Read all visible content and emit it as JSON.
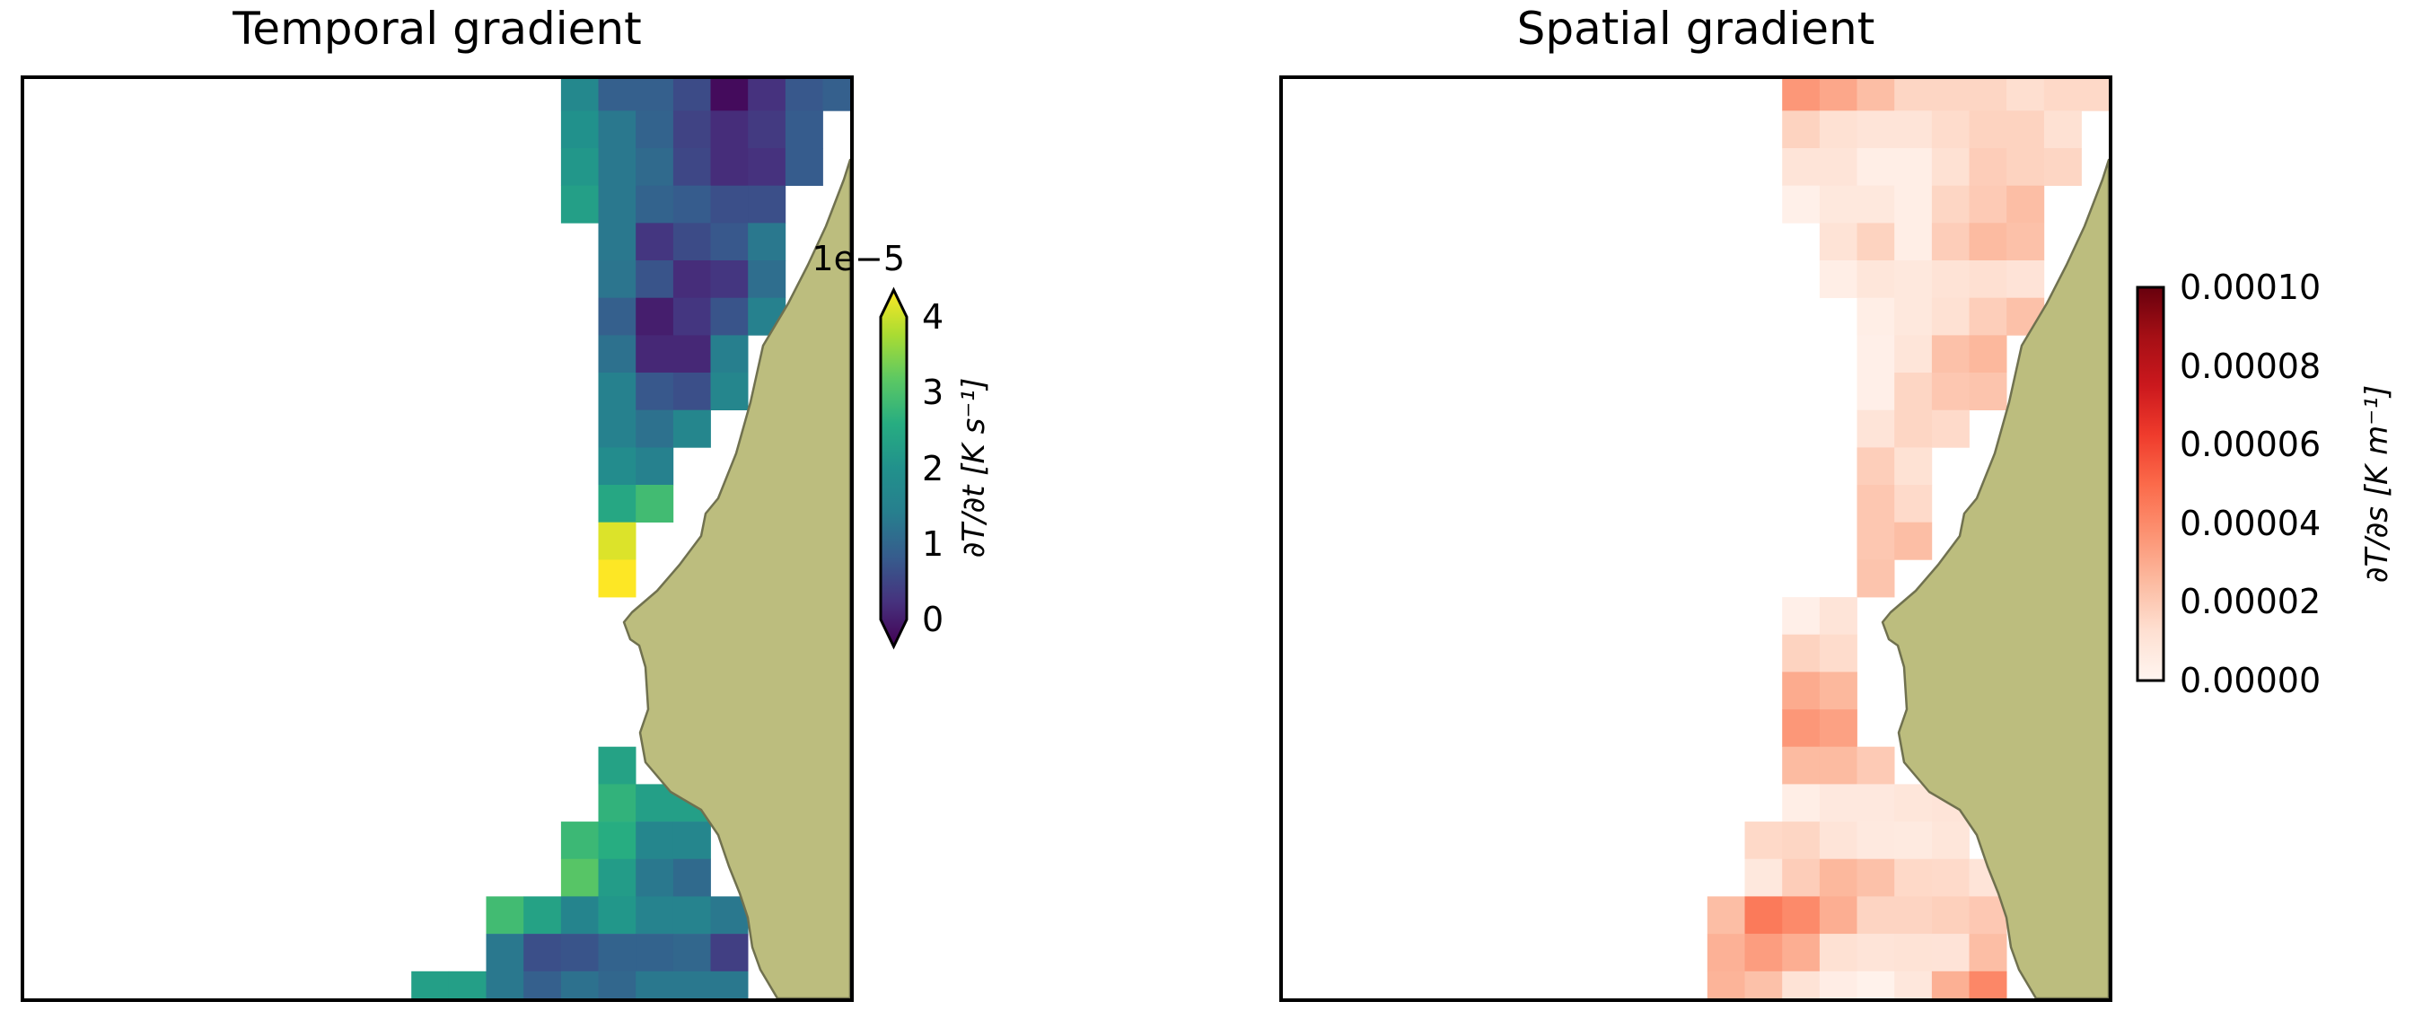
{
  "figure": {
    "background": "#ffffff",
    "border_color": "#000000",
    "land_fill": "#bcbd7e",
    "land_edge": "#70714f"
  },
  "chart_data": [
    {
      "type": "heatmap",
      "title": "Temporal gradient",
      "colorbar_label": "∂T/∂t [K s⁻¹]",
      "offset_text": "1e−5",
      "colorbar_ticks": [
        "4",
        "3",
        "2",
        "1",
        "0"
      ],
      "colormap": "viridis",
      "extend": "both",
      "vmin": 0,
      "vmax": 4e-05,
      "value_units": "1e-5 K/s",
      "axes_ticks": "none",
      "legend": "none",
      "grid_note": "cells are [row,col,value(x1e-5)] on a 41.67px square lattice over the map",
      "cells": [
        [
          1,
          15,
          1.75
        ],
        [
          1,
          16,
          1.05
        ],
        [
          1,
          17,
          1.05
        ],
        [
          1,
          18,
          0.8
        ],
        [
          1,
          19,
          0.1
        ],
        [
          1,
          20,
          0.5
        ],
        [
          1,
          21,
          0.95
        ],
        [
          1,
          22,
          1.05
        ],
        [
          2,
          15,
          2.0
        ],
        [
          2,
          16,
          1.4
        ],
        [
          2,
          17,
          1.1
        ],
        [
          2,
          18,
          0.7
        ],
        [
          2,
          19,
          0.45
        ],
        [
          2,
          20,
          0.6
        ],
        [
          2,
          21,
          1.0
        ],
        [
          3,
          15,
          2.1
        ],
        [
          3,
          16,
          1.4
        ],
        [
          3,
          17,
          1.2
        ],
        [
          3,
          18,
          0.75
        ],
        [
          3,
          19,
          0.45
        ],
        [
          3,
          20,
          0.5
        ],
        [
          3,
          21,
          1.0
        ],
        [
          4,
          15,
          2.25
        ],
        [
          4,
          16,
          1.4
        ],
        [
          4,
          17,
          1.1
        ],
        [
          4,
          18,
          1.0
        ],
        [
          4,
          19,
          0.85
        ],
        [
          4,
          20,
          0.85
        ],
        [
          5,
          16,
          1.4
        ],
        [
          5,
          17,
          0.55
        ],
        [
          5,
          18,
          0.8
        ],
        [
          5,
          19,
          0.95
        ],
        [
          5,
          20,
          1.4
        ],
        [
          6,
          16,
          1.35
        ],
        [
          6,
          17,
          0.9
        ],
        [
          6,
          18,
          0.45
        ],
        [
          6,
          19,
          0.55
        ],
        [
          6,
          20,
          1.25
        ],
        [
          7,
          16,
          1.05
        ],
        [
          7,
          17,
          0.3
        ],
        [
          7,
          18,
          0.55
        ],
        [
          7,
          19,
          0.9
        ],
        [
          7,
          20,
          1.55
        ],
        [
          8,
          16,
          1.3
        ],
        [
          8,
          17,
          0.4
        ],
        [
          8,
          18,
          0.4
        ],
        [
          8,
          19,
          1.5
        ],
        [
          9,
          16,
          1.55
        ],
        [
          9,
          17,
          0.95
        ],
        [
          9,
          18,
          0.85
        ],
        [
          9,
          19,
          1.7
        ],
        [
          10,
          16,
          1.55
        ],
        [
          10,
          17,
          1.3
        ],
        [
          10,
          18,
          1.7
        ],
        [
          11,
          16,
          1.85
        ],
        [
          11,
          17,
          1.55
        ],
        [
          12,
          16,
          2.4
        ],
        [
          12,
          17,
          2.75
        ],
        [
          13,
          16,
          3.8
        ],
        [
          14,
          16,
          4.0
        ],
        [
          19,
          16,
          2.3
        ],
        [
          20,
          16,
          2.6
        ],
        [
          20,
          17,
          2.25
        ],
        [
          20,
          18,
          2.25
        ],
        [
          21,
          15,
          2.7
        ],
        [
          21,
          16,
          2.5
        ],
        [
          21,
          17,
          1.7
        ],
        [
          21,
          18,
          1.7
        ],
        [
          22,
          15,
          2.95
        ],
        [
          22,
          16,
          2.2
        ],
        [
          22,
          17,
          1.4
        ],
        [
          22,
          18,
          1.2
        ],
        [
          23,
          13,
          2.75
        ],
        [
          23,
          14,
          2.3
        ],
        [
          23,
          15,
          1.65
        ],
        [
          23,
          16,
          2.1
        ],
        [
          23,
          17,
          1.6
        ],
        [
          23,
          18,
          1.6
        ],
        [
          23,
          19,
          1.4
        ],
        [
          24,
          13,
          1.4
        ],
        [
          24,
          14,
          0.85
        ],
        [
          24,
          15,
          0.9
        ],
        [
          24,
          16,
          1.1
        ],
        [
          24,
          17,
          1.1
        ],
        [
          24,
          18,
          1.15
        ],
        [
          24,
          19,
          0.65
        ],
        [
          25,
          11,
          2.25
        ],
        [
          25,
          12,
          2.25
        ],
        [
          25,
          13,
          1.4
        ],
        [
          25,
          14,
          1.05
        ],
        [
          25,
          15,
          1.3
        ],
        [
          25,
          16,
          1.15
        ],
        [
          25,
          17,
          1.4
        ],
        [
          25,
          18,
          1.4
        ],
        [
          25,
          19,
          1.4
        ]
      ]
    },
    {
      "type": "heatmap",
      "title": "Spatial gradient",
      "colorbar_label": "∂T/∂s [K m⁻¹]",
      "offset_text": "",
      "colorbar_ticks": [
        "0.00010",
        "0.00008",
        "0.00006",
        "0.00004",
        "0.00002",
        "0.00000"
      ],
      "colormap": "reds",
      "extend": "neither",
      "vmin": 0,
      "vmax": 0.0001,
      "value_units": "1e-5 K/m",
      "axes_ticks": "none",
      "legend": "none",
      "grid_note": "cells are [row,col,value(x1e-5)] on a 41.67px square lattice over the map",
      "cells": [
        [
          1,
          14,
          3.6
        ],
        [
          1,
          15,
          3.1
        ],
        [
          1,
          16,
          2.4
        ],
        [
          1,
          17,
          1.6
        ],
        [
          1,
          18,
          1.6
        ],
        [
          1,
          19,
          1.6
        ],
        [
          1,
          20,
          1.3
        ],
        [
          1,
          21,
          1.5
        ],
        [
          1,
          22,
          1.5
        ],
        [
          2,
          14,
          1.7
        ],
        [
          2,
          15,
          1.2
        ],
        [
          2,
          16,
          1.0
        ],
        [
          2,
          17,
          1.0
        ],
        [
          2,
          18,
          1.4
        ],
        [
          2,
          19,
          1.7
        ],
        [
          2,
          20,
          1.7
        ],
        [
          2,
          21,
          1.2
        ],
        [
          3,
          14,
          1.0
        ],
        [
          3,
          15,
          1.0
        ],
        [
          3,
          16,
          0.4
        ],
        [
          3,
          17,
          0.4
        ],
        [
          3,
          18,
          1.2
        ],
        [
          3,
          19,
          1.9
        ],
        [
          3,
          20,
          1.7
        ],
        [
          3,
          21,
          1.6
        ],
        [
          4,
          14,
          0.3
        ],
        [
          4,
          15,
          0.8
        ],
        [
          4,
          16,
          0.8
        ],
        [
          4,
          17,
          0.4
        ],
        [
          4,
          18,
          1.6
        ],
        [
          4,
          19,
          2.0
        ],
        [
          4,
          20,
          2.4
        ],
        [
          5,
          15,
          1.1
        ],
        [
          5,
          16,
          1.7
        ],
        [
          5,
          17,
          0.4
        ],
        [
          5,
          18,
          1.9
        ],
        [
          5,
          19,
          2.5
        ],
        [
          5,
          20,
          2.3
        ],
        [
          6,
          15,
          0.4
        ],
        [
          6,
          16,
          0.9
        ],
        [
          6,
          17,
          0.8
        ],
        [
          6,
          18,
          1.1
        ],
        [
          6,
          19,
          1.25
        ],
        [
          6,
          20,
          1.05
        ],
        [
          7,
          16,
          0.4
        ],
        [
          7,
          17,
          0.8
        ],
        [
          7,
          18,
          1.2
        ],
        [
          7,
          19,
          1.85
        ],
        [
          7,
          20,
          2.3
        ],
        [
          8,
          16,
          0.35
        ],
        [
          8,
          17,
          0.95
        ],
        [
          8,
          18,
          2.3
        ],
        [
          8,
          19,
          2.6
        ],
        [
          9,
          16,
          0.35
        ],
        [
          9,
          17,
          1.6
        ],
        [
          9,
          18,
          2.1
        ],
        [
          9,
          19,
          2.2
        ],
        [
          10,
          16,
          1.0
        ],
        [
          10,
          17,
          1.6
        ],
        [
          10,
          18,
          1.45
        ],
        [
          11,
          16,
          1.85
        ],
        [
          11,
          17,
          1.15
        ],
        [
          12,
          16,
          2.1
        ],
        [
          12,
          17,
          1.45
        ],
        [
          13,
          16,
          2.1
        ],
        [
          13,
          17,
          2.4
        ],
        [
          14,
          16,
          2.2
        ],
        [
          15,
          14,
          0.35
        ],
        [
          15,
          15,
          1.0
        ],
        [
          16,
          14,
          1.7
        ],
        [
          16,
          15,
          1.4
        ],
        [
          17,
          14,
          3.0
        ],
        [
          17,
          15,
          2.6
        ],
        [
          18,
          14,
          3.6
        ],
        [
          18,
          15,
          3.3
        ],
        [
          19,
          14,
          2.5
        ],
        [
          19,
          15,
          2.5
        ],
        [
          19,
          16,
          2.0
        ],
        [
          20,
          14,
          0.4
        ],
        [
          20,
          15,
          0.75
        ],
        [
          20,
          16,
          0.75
        ],
        [
          20,
          17,
          0.9
        ],
        [
          20,
          18,
          1.0
        ],
        [
          21,
          13,
          1.5
        ],
        [
          21,
          14,
          1.6
        ],
        [
          21,
          15,
          1.0
        ],
        [
          21,
          16,
          0.7
        ],
        [
          21,
          17,
          0.65
        ],
        [
          21,
          18,
          0.9
        ],
        [
          22,
          13,
          0.8
        ],
        [
          22,
          14,
          1.9
        ],
        [
          22,
          15,
          2.6
        ],
        [
          22,
          16,
          2.3
        ],
        [
          22,
          17,
          1.5
        ],
        [
          22,
          18,
          1.45
        ],
        [
          22,
          19,
          1.0
        ],
        [
          23,
          12,
          2.4
        ],
        [
          23,
          13,
          4.5
        ],
        [
          23,
          14,
          4.0
        ],
        [
          23,
          15,
          2.9
        ],
        [
          23,
          16,
          1.65
        ],
        [
          23,
          17,
          1.65
        ],
        [
          23,
          18,
          1.8
        ],
        [
          23,
          19,
          2.05
        ],
        [
          24,
          12,
          2.8
        ],
        [
          24,
          13,
          3.4
        ],
        [
          24,
          14,
          2.9
        ],
        [
          24,
          15,
          1.2
        ],
        [
          24,
          16,
          1.0
        ],
        [
          24,
          17,
          1.1
        ],
        [
          24,
          18,
          1.05
        ],
        [
          24,
          19,
          2.4
        ],
        [
          25,
          12,
          2.7
        ],
        [
          25,
          13,
          2.3
        ],
        [
          25,
          14,
          1.1
        ],
        [
          25,
          15,
          0.45
        ],
        [
          25,
          16,
          0.2
        ],
        [
          25,
          17,
          0.85
        ],
        [
          25,
          18,
          2.85
        ],
        [
          25,
          19,
          4.1
        ]
      ]
    }
  ],
  "land": {
    "points": [
      [
        920,
        90
      ],
      [
        913,
        112
      ],
      [
        893,
        164
      ],
      [
        873,
        207
      ],
      [
        851,
        250
      ],
      [
        823,
        297
      ],
      [
        809,
        360
      ],
      [
        793,
        417
      ],
      [
        773,
        467
      ],
      [
        759,
        484
      ],
      [
        754,
        509
      ],
      [
        730,
        541
      ],
      [
        705,
        570
      ],
      [
        677,
        594
      ],
      [
        668,
        605
      ],
      [
        675,
        624
      ],
      [
        685,
        631
      ],
      [
        692,
        655
      ],
      [
        695,
        702
      ],
      [
        686,
        728
      ],
      [
        692,
        761
      ],
      [
        720,
        794
      ],
      [
        754,
        814
      ],
      [
        773,
        842
      ],
      [
        785,
        877
      ],
      [
        797,
        907
      ],
      [
        806,
        934
      ],
      [
        811,
        967
      ],
      [
        820,
        992
      ],
      [
        839,
        1024
      ],
      [
        920,
        1024
      ]
    ]
  },
  "colormaps": {
    "viridis": [
      [
        0,
        "#440154"
      ],
      [
        0.125,
        "#46327e"
      ],
      [
        0.25,
        "#365c8d"
      ],
      [
        0.375,
        "#277f8e"
      ],
      [
        0.5,
        "#21918c"
      ],
      [
        0.625,
        "#27ad81"
      ],
      [
        0.75,
        "#5cc863"
      ],
      [
        0.875,
        "#aadc32"
      ],
      [
        1,
        "#fde725"
      ]
    ],
    "reds": [
      [
        0,
        "#fff5f0"
      ],
      [
        0.125,
        "#fee0d2"
      ],
      [
        0.25,
        "#fcbba1"
      ],
      [
        0.375,
        "#fc9272"
      ],
      [
        0.5,
        "#fb6a4a"
      ],
      [
        0.625,
        "#ef3b2c"
      ],
      [
        0.75,
        "#cb181d"
      ],
      [
        0.875,
        "#a50f15"
      ],
      [
        1,
        "#67000d"
      ]
    ]
  }
}
